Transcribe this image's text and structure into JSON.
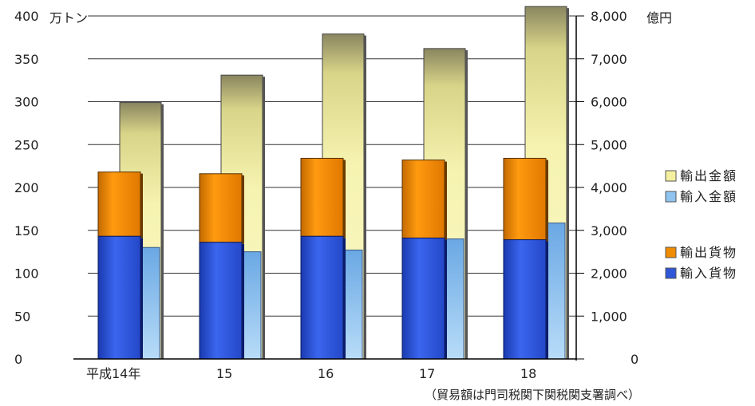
{
  "chart_data": {
    "type": "bar",
    "categories": [
      "平成14年",
      "15",
      "16",
      "17",
      "18"
    ],
    "left_axis": {
      "unit_label": "万トン",
      "min": 0,
      "max": 400,
      "ticks": [
        "0",
        "50",
        "100",
        "150",
        "200",
        "250",
        "300",
        "350",
        "400"
      ]
    },
    "right_axis": {
      "unit_label": "億円",
      "min": 0,
      "max": 8000,
      "ticks": [
        "0",
        "1,000",
        "2,000",
        "3,000",
        "4,000",
        "5,000",
        "6,000",
        "7,000",
        "8,000"
      ]
    },
    "stacked_cargo": {
      "axis": "left",
      "series": [
        {
          "name": "輸入貨物",
          "values": [
            143,
            136,
            143,
            141,
            139
          ],
          "color": "#2f57d8"
        },
        {
          "name": "輸出貨物",
          "values": [
            75,
            80,
            91,
            91,
            95
          ],
          "color": "#f08c00"
        }
      ]
    },
    "trade_value": {
      "axis": "right",
      "series": [
        {
          "name": "輸入金額",
          "values": [
            2600,
            2500,
            2540,
            2800,
            3170
          ],
          "color": "#8ec4f0"
        },
        {
          "name": "輸出金額",
          "values": [
            5980,
            6620,
            7580,
            7240,
            8220
          ],
          "color": "#f4f0a0"
        }
      ]
    },
    "legend": {
      "position": "right",
      "items": [
        "輸出金額",
        "輸入金額",
        "輸出貨物",
        "輸入貨物"
      ]
    },
    "grid": true,
    "source_note": "（貿易額は門司税関下関税関支署調べ）"
  }
}
